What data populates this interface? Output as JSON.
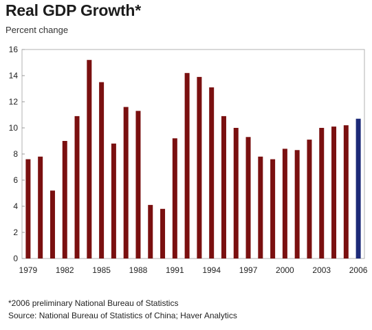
{
  "title": "Real GDP Growth*",
  "subtitle": "Percent change",
  "footnote": "*2006 preliminary National Bureau of Statistics",
  "source": "Source: National Bureau of Statistics of China; Haver Analytics",
  "chart_data": {
    "type": "bar",
    "title": "Real GDP Growth*",
    "ylabel": "Percent change",
    "ylim": [
      0,
      16
    ],
    "yticks": [
      0,
      2,
      4,
      6,
      8,
      10,
      12,
      14,
      16
    ],
    "xtick_labels": [
      "1979",
      "1982",
      "1985",
      "1988",
      "1991",
      "1994",
      "1997",
      "2000",
      "2003",
      "2006"
    ],
    "grid": false,
    "colors": {
      "bar": "#7a1010",
      "highlight": "#1c2a78"
    },
    "highlight_category": "2006",
    "categories": [
      "1979",
      "1980",
      "1981",
      "1982",
      "1983",
      "1984",
      "1985",
      "1986",
      "1987",
      "1988",
      "1989",
      "1990",
      "1991",
      "1992",
      "1993",
      "1994",
      "1995",
      "1996",
      "1997",
      "1998",
      "1999",
      "2000",
      "2001",
      "2002",
      "2003",
      "2004",
      "2005",
      "2006"
    ],
    "values": [
      7.6,
      7.8,
      5.2,
      9.0,
      10.9,
      15.2,
      13.5,
      8.8,
      11.6,
      11.3,
      4.1,
      3.8,
      9.2,
      14.2,
      13.9,
      13.1,
      10.9,
      10.0,
      9.3,
      7.8,
      7.6,
      8.4,
      8.3,
      9.1,
      10.0,
      10.1,
      10.2,
      10.7
    ]
  }
}
